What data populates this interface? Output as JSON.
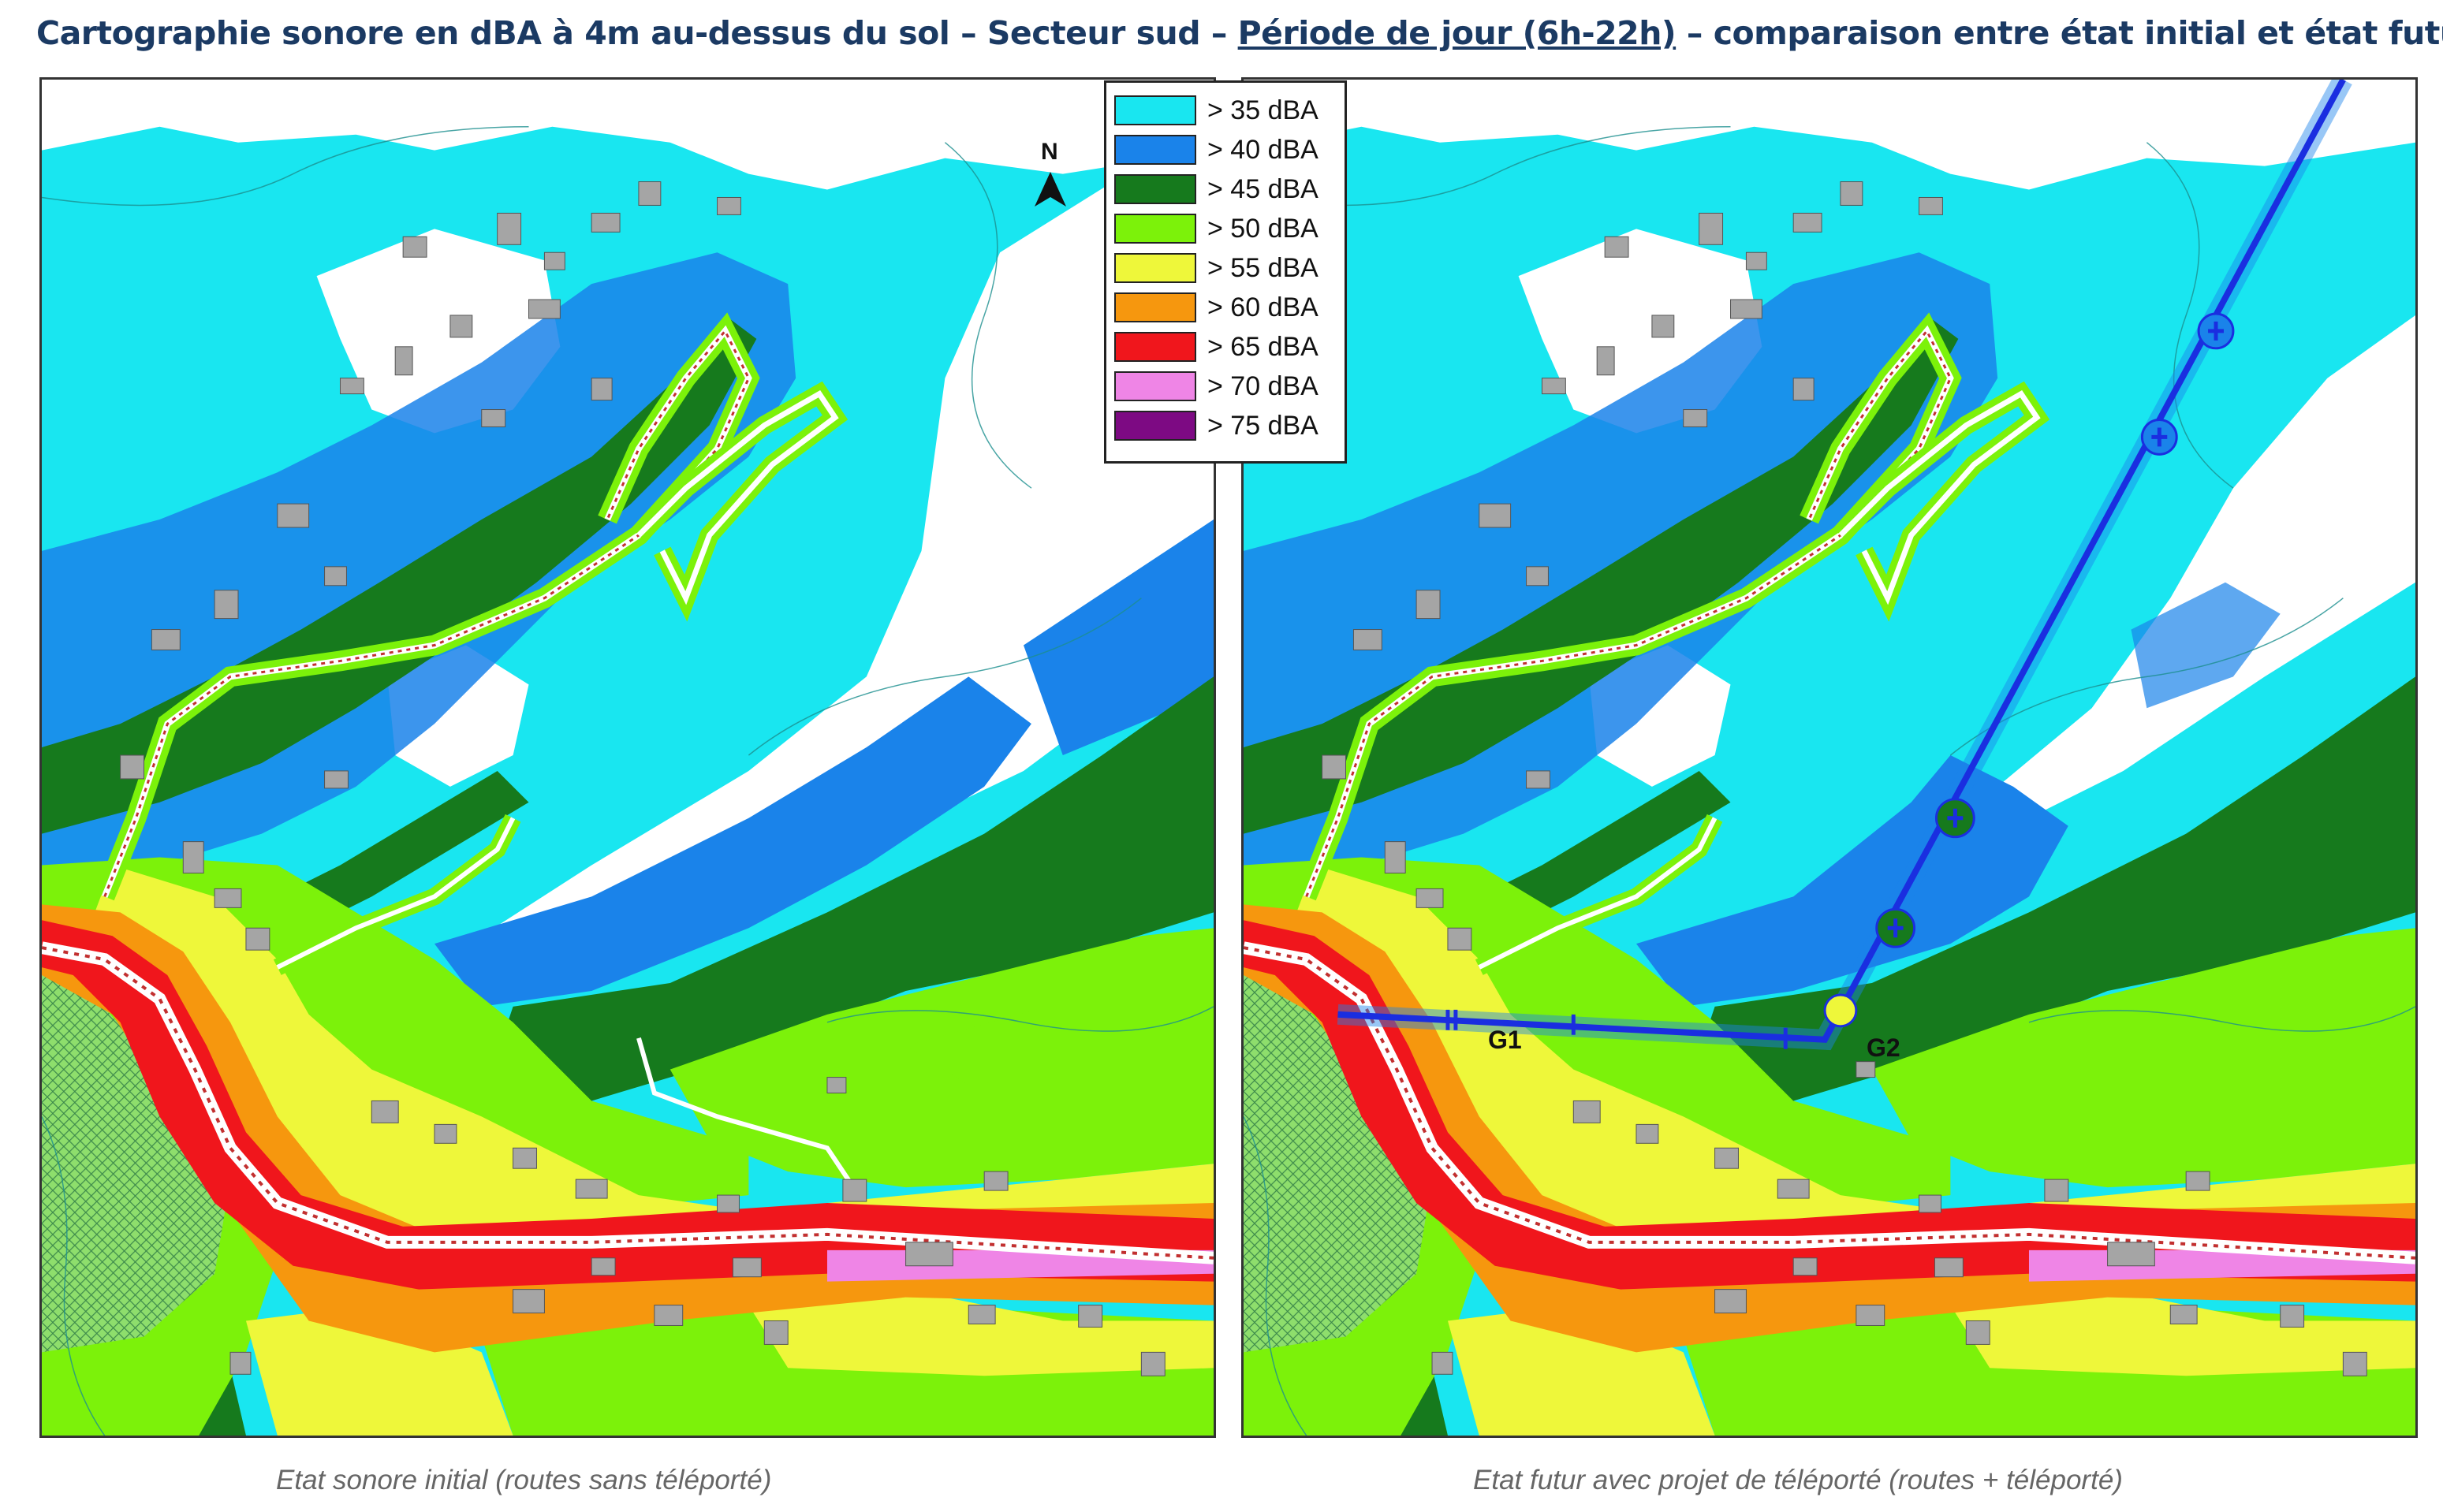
{
  "title": {
    "part1": "Cartographie sonore en dBA à 4m au-dessus du sol – Secteur sud – ",
    "underlined": "Période de jour (6h-22h)",
    "part2": " – comparaison entre état initial et état futur"
  },
  "legend": {
    "items": [
      {
        "label": "> 35 dBA",
        "color": "#19e6f0"
      },
      {
        "label": "> 40 dBA",
        "color": "#1a83ea"
      },
      {
        "label": "> 45 dBA",
        "color": "#167a1d"
      },
      {
        "label": "> 50 dBA",
        "color": "#7cf20a"
      },
      {
        "label": "> 55 dBA",
        "color": "#eef73a"
      },
      {
        "label": "> 60 dBA",
        "color": "#f6970e"
      },
      {
        "label": "> 65 dBA",
        "color": "#f0161c"
      },
      {
        "label": "> 70 dBA",
        "color": "#ef85e6"
      },
      {
        "label": "> 75 dBA",
        "color": "#7d0a83"
      }
    ]
  },
  "north_label": "N",
  "stations": {
    "g1": "G1",
    "g2": "G2"
  },
  "captions": {
    "left": "Etat sonore initial (routes sans téléporté)",
    "right": "Etat futur avec projet de téléporté (routes + téléporté)"
  },
  "colors": {
    "white_zone": "#ffffff",
    "building": "#a5a5a5",
    "cable_line": "#1a2ee0",
    "hatch": "#3d8a4b"
  }
}
